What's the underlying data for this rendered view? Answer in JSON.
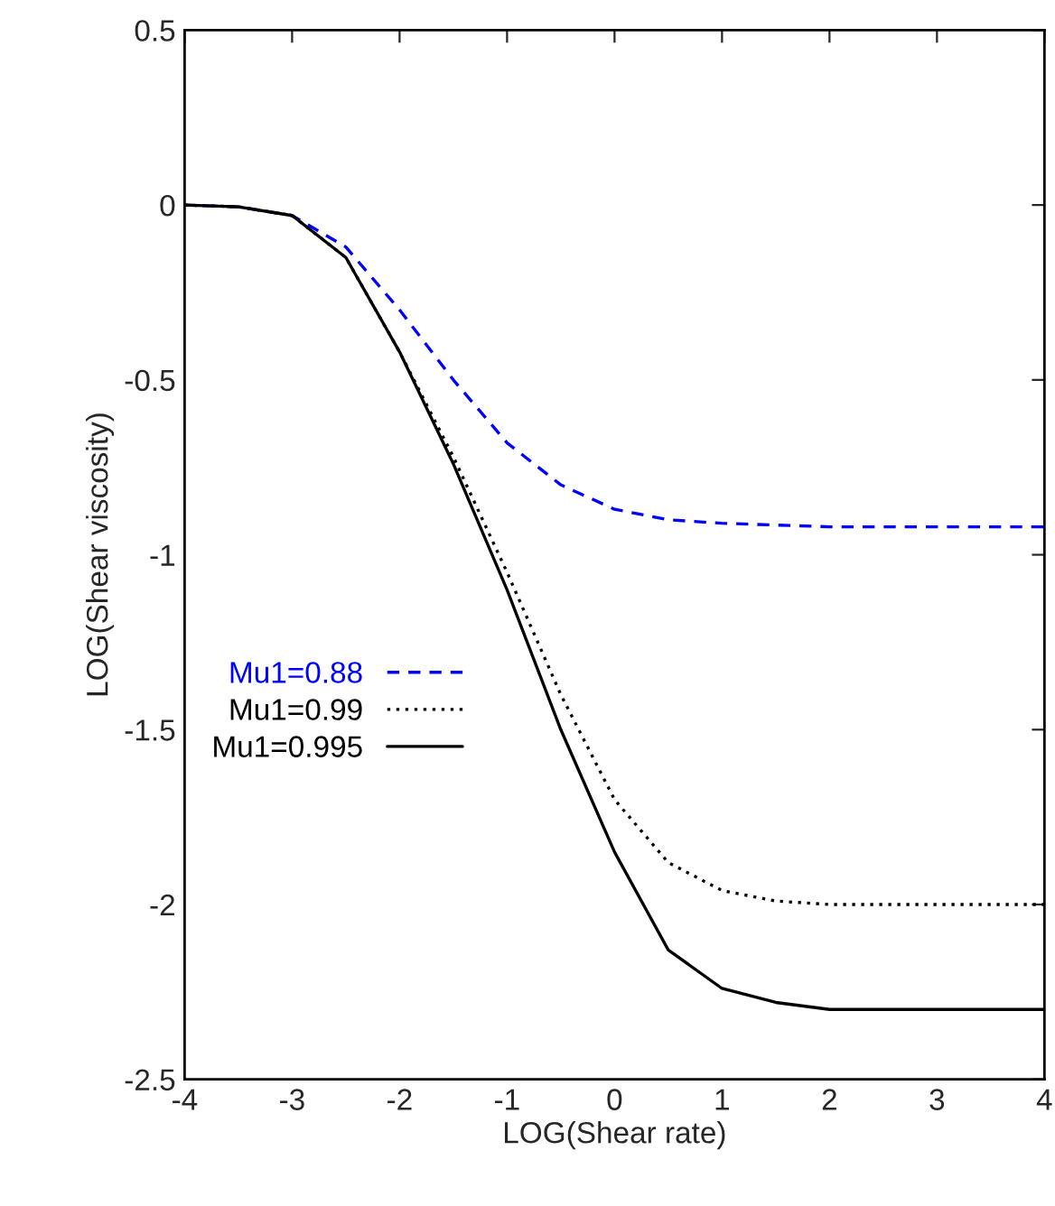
{
  "chart_data": {
    "type": "line",
    "xlabel": "LOG(Shear rate)",
    "ylabel": "LOG(Shear viscosity)",
    "xlim": [
      -4,
      4
    ],
    "ylim": [
      -2.5,
      0.5
    ],
    "xticks": [
      -4,
      -3,
      -2,
      -1,
      0,
      1,
      2,
      3,
      4
    ],
    "yticks": [
      -2.5,
      -2,
      -1.5,
      -1,
      -0.5,
      0,
      0.5
    ],
    "grid": false,
    "legend": "left",
    "marker": "none",
    "series": [
      {
        "name": "Mu1=0.88",
        "color": "#0000ff",
        "line_style": "dashed",
        "x": [
          -4,
          -3.5,
          -3,
          -2.5,
          -2,
          -1.5,
          -1,
          -0.5,
          0,
          0.5,
          1,
          1.5,
          2,
          3,
          4
        ],
        "values": [
          0,
          -0.005,
          -0.03,
          -0.12,
          -0.3,
          -0.5,
          -0.68,
          -0.8,
          -0.87,
          -0.9,
          -0.91,
          -0.915,
          -0.92,
          -0.92,
          -0.92
        ]
      },
      {
        "name": "Mu1=0.99",
        "color": "#000000",
        "line_style": "dotted",
        "x": [
          -4,
          -3.5,
          -3,
          -2.5,
          -2,
          -1.5,
          -1,
          -0.5,
          0,
          0.5,
          1,
          1.5,
          2,
          3,
          4
        ],
        "values": [
          0,
          -0.005,
          -0.03,
          -0.15,
          -0.42,
          -0.72,
          -1.05,
          -1.4,
          -1.7,
          -1.88,
          -1.96,
          -1.99,
          -2.0,
          -2.0,
          -2.0
        ]
      },
      {
        "name": "Mu1=0.995",
        "color": "#000000",
        "line_style": "solid",
        "x": [
          -4,
          -3.5,
          -3,
          -2.5,
          -2,
          -1.5,
          -1,
          -0.5,
          0,
          0.5,
          1,
          1.5,
          2,
          3,
          4
        ],
        "values": [
          0,
          -0.005,
          -0.03,
          -0.15,
          -0.42,
          -0.74,
          -1.1,
          -1.5,
          -1.85,
          -2.13,
          -2.24,
          -2.28,
          -2.3,
          -2.3,
          -2.3
        ]
      }
    ]
  }
}
